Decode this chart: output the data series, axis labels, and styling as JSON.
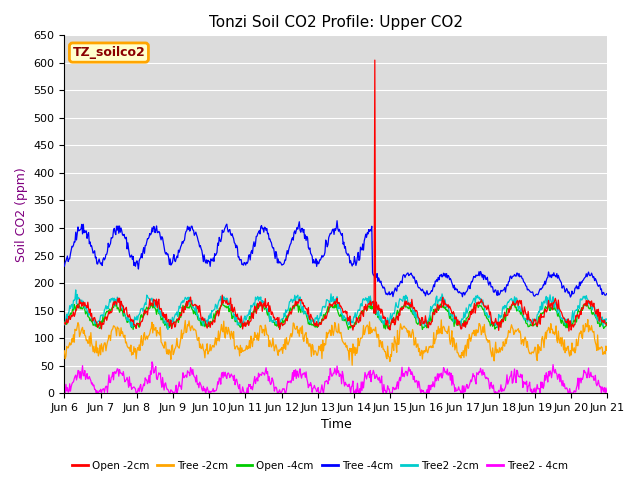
{
  "title": "Tonzi Soil CO2 Profile: Upper CO2",
  "ylabel": "Soil CO2 (ppm)",
  "xlabel": "Time",
  "watermark_text": "TZ_soilco2",
  "ylim": [
    0,
    650
  ],
  "yticks": [
    0,
    50,
    100,
    150,
    200,
    250,
    300,
    350,
    400,
    450,
    500,
    550,
    600,
    650
  ],
  "xtick_labels": [
    "Jun 6",
    "Jun 7",
    "Jun 8",
    "Jun 9",
    "Jun 10",
    "Jun 11",
    "Jun 12",
    "Jun 13",
    "Jun 14",
    "Jun 15",
    "Jun 16",
    "Jun 17",
    "Jun 18",
    "Jun 19",
    "Jun 20",
    "Jun 21"
  ],
  "plot_bg_color": "#dcdcdc",
  "fig_bg_color": "#ffffff",
  "series": {
    "Open_2cm": {
      "color": "#ff0000",
      "label": "Open -2cm"
    },
    "Tree_2cm": {
      "color": "#ffa500",
      "label": "Tree -2cm"
    },
    "Open_4cm": {
      "color": "#00cc00",
      "label": "Open -4cm"
    },
    "Tree_4cm": {
      "color": "#0000ff",
      "label": "Tree -4cm"
    },
    "Tree2_2cm": {
      "color": "#00cccc",
      "label": "Tree2 -2cm"
    },
    "Tree2_4cm": {
      "color": "#ff00ff",
      "label": "Tree2 - 4cm"
    }
  },
  "ylabel_color": "#800080",
  "title_fontsize": 11,
  "axis_fontsize": 9,
  "tick_fontsize": 8
}
